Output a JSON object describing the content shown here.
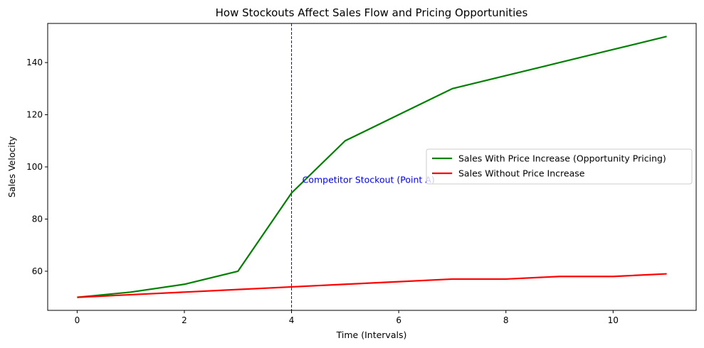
{
  "chart_data": {
    "type": "line",
    "title": "How Stockouts Affect Sales Flow and Pricing Opportunities",
    "xlabel": "Time (Intervals)",
    "ylabel": "Sales Velocity",
    "x": [
      0,
      1,
      2,
      3,
      4,
      5,
      6,
      7,
      8,
      9,
      10,
      11
    ],
    "xlim": [
      -0.55,
      11.55
    ],
    "ylim": [
      45,
      155
    ],
    "xticks": [
      0,
      2,
      4,
      6,
      8,
      10
    ],
    "yticks": [
      60,
      80,
      100,
      120,
      140
    ],
    "grid": false,
    "legend_position": "center-right",
    "series": [
      {
        "name": "Sales With Price Increase (Opportunity Pricing)",
        "color": "#008000",
        "values": [
          50,
          52,
          55,
          60,
          90,
          110,
          120,
          130,
          135,
          140,
          145,
          150
        ]
      },
      {
        "name": "Sales Without Price Increase",
        "color": "#ff0000",
        "values": [
          50,
          51,
          52,
          53,
          54,
          55,
          56,
          57,
          57,
          58,
          58,
          59
        ]
      }
    ],
    "annotations": [
      {
        "type": "vline",
        "x": 4,
        "color": "#0000ff",
        "style": "dashed",
        "text": "Competitor Stockout (Point A)",
        "text_x": 4.2,
        "text_y": 95
      }
    ]
  }
}
